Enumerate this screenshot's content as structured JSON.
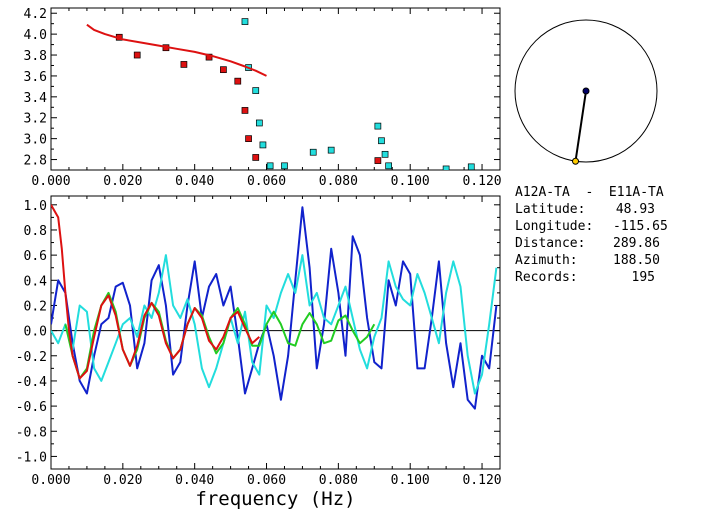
{
  "station_pair": "A12A-TA  -  E11A-TA",
  "info": [
    {
      "label": "Latitude:",
      "value": "48.93"
    },
    {
      "label": "Longitude:",
      "value": "-115.65"
    },
    {
      "label": "Distance:",
      "value": "289.86"
    },
    {
      "label": "Azimuth:",
      "value": "188.50"
    },
    {
      "label": "Records:",
      "value": "195"
    }
  ],
  "colors": {
    "red": "#dd1111",
    "cyan": "#22dddd",
    "blue": "#1122cc",
    "green": "#22cc22",
    "black": "#000000",
    "yellow": "#ffcc00",
    "navy": "#000066"
  },
  "compass": {
    "azimuth_deg": 188.5
  },
  "chart_data": [
    {
      "type": "scatter",
      "xlim": [
        0.0,
        0.125
      ],
      "ylim": [
        2.7,
        4.25
      ],
      "xticks": [
        "0.000",
        "0.020",
        "0.040",
        "0.060",
        "0.080",
        "0.100",
        "0.120"
      ],
      "xtick_values": [
        0.0,
        0.02,
        0.04,
        0.06,
        0.08,
        0.1,
        0.12
      ],
      "yticks": [
        "2.8",
        "3.0",
        "3.2",
        "3.4",
        "3.6",
        "3.8",
        "4.0",
        "4.2"
      ],
      "ytick_values": [
        2.8,
        3.0,
        3.2,
        3.4,
        3.6,
        3.8,
        4.0,
        4.2
      ],
      "series": [
        {
          "color": "#dd1111",
          "kind": "points",
          "x": [
            0.019,
            0.024,
            0.032,
            0.037,
            0.044,
            0.048,
            0.052,
            0.054,
            0.055,
            0.057,
            0.091
          ],
          "y": [
            3.97,
            3.8,
            3.87,
            3.71,
            3.78,
            3.66,
            3.55,
            3.27,
            3.0,
            2.82,
            2.79
          ]
        },
        {
          "color": "#22dddd",
          "kind": "points",
          "x": [
            0.054,
            0.055,
            0.057,
            0.058,
            0.059,
            0.061,
            0.065,
            0.073,
            0.078,
            0.091,
            0.092,
            0.093,
            0.094,
            0.11,
            0.117
          ],
          "y": [
            4.12,
            3.68,
            3.46,
            3.15,
            2.94,
            2.74,
            2.74,
            2.87,
            2.89,
            3.12,
            2.98,
            2.85,
            2.74,
            2.71,
            2.73
          ]
        },
        {
          "color": "#dd1111",
          "kind": "line",
          "x": [
            0.01,
            0.012,
            0.015,
            0.02,
            0.025,
            0.03,
            0.035,
            0.04,
            0.045,
            0.05,
            0.054,
            0.057,
            0.06
          ],
          "y": [
            4.09,
            4.04,
            4.0,
            3.95,
            3.92,
            3.89,
            3.86,
            3.83,
            3.79,
            3.74,
            3.69,
            3.65,
            3.6
          ]
        }
      ]
    },
    {
      "type": "line",
      "xlabel": "frequency (Hz)",
      "xlim": [
        0.0,
        0.125
      ],
      "ylim": [
        -1.1,
        1.07
      ],
      "xticks": [
        "0.000",
        "0.020",
        "0.040",
        "0.060",
        "0.080",
        "0.100",
        "0.120"
      ],
      "xtick_values": [
        0.0,
        0.02,
        0.04,
        0.06,
        0.08,
        0.1,
        0.12
      ],
      "yticks": [
        "1.0",
        "0.8",
        "0.6",
        "0.4",
        "0.2",
        "0.0",
        "-0.2",
        "-0.4",
        "-0.6",
        "-0.8",
        "-1.0"
      ],
      "ytick_values": [
        1.0,
        0.8,
        0.6,
        0.4,
        0.2,
        0.0,
        -0.2,
        -0.4,
        -0.6,
        -0.8,
        -1.0
      ],
      "series": [
        {
          "color": "#1122cc",
          "x": [
            0.0,
            0.002,
            0.004,
            0.006,
            0.008,
            0.01,
            0.012,
            0.014,
            0.016,
            0.018,
            0.02,
            0.022,
            0.024,
            0.026,
            0.028,
            0.03,
            0.032,
            0.034,
            0.036,
            0.038,
            0.04,
            0.042,
            0.044,
            0.046,
            0.048,
            0.05,
            0.052,
            0.054,
            0.056,
            0.058,
            0.06,
            0.062,
            0.064,
            0.066,
            0.068,
            0.07,
            0.072,
            0.074,
            0.076,
            0.078,
            0.08,
            0.082,
            0.084,
            0.086,
            0.088,
            0.09,
            0.092,
            0.094,
            0.096,
            0.098,
            0.1,
            0.102,
            0.104,
            0.106,
            0.108,
            0.11,
            0.112,
            0.114,
            0.116,
            0.118,
            0.12,
            0.122,
            0.124
          ],
          "y": [
            0.05,
            0.4,
            0.3,
            -0.1,
            -0.4,
            -0.5,
            -0.2,
            0.05,
            0.1,
            0.35,
            0.38,
            0.2,
            -0.3,
            -0.1,
            0.4,
            0.52,
            0.2,
            -0.35,
            -0.25,
            0.2,
            0.55,
            0.1,
            0.35,
            0.45,
            0.2,
            0.35,
            -0.05,
            -0.5,
            -0.3,
            -0.1,
            0.05,
            -0.2,
            -0.55,
            -0.2,
            0.4,
            0.98,
            0.5,
            -0.3,
            0.05,
            0.65,
            0.3,
            -0.2,
            0.75,
            0.6,
            0.1,
            -0.25,
            -0.3,
            0.4,
            0.2,
            0.55,
            0.45,
            -0.3,
            -0.3,
            0.1,
            0.55,
            -0.1,
            -0.45,
            -0.1,
            -0.55,
            -0.62,
            -0.2,
            -0.3,
            0.2
          ]
        },
        {
          "color": "#22dddd",
          "x": [
            0.0,
            0.002,
            0.004,
            0.006,
            0.008,
            0.01,
            0.012,
            0.014,
            0.016,
            0.018,
            0.02,
            0.022,
            0.024,
            0.026,
            0.028,
            0.03,
            0.032,
            0.034,
            0.036,
            0.038,
            0.04,
            0.042,
            0.044,
            0.046,
            0.048,
            0.05,
            0.052,
            0.054,
            0.056,
            0.058,
            0.06,
            0.062,
            0.064,
            0.066,
            0.068,
            0.07,
            0.072,
            0.074,
            0.076,
            0.078,
            0.08,
            0.082,
            0.084,
            0.086,
            0.088,
            0.09,
            0.092,
            0.094,
            0.096,
            0.098,
            0.1,
            0.102,
            0.104,
            0.106,
            0.108,
            0.11,
            0.112,
            0.114,
            0.116,
            0.118,
            0.12,
            0.122,
            0.124
          ],
          "y": [
            0.0,
            -0.1,
            0.05,
            -0.15,
            0.2,
            0.15,
            -0.3,
            -0.4,
            -0.25,
            -0.1,
            0.05,
            0.1,
            -0.05,
            0.2,
            0.1,
            0.3,
            0.6,
            0.2,
            0.1,
            0.25,
            0.05,
            -0.3,
            -0.45,
            -0.3,
            -0.1,
            0.1,
            -0.1,
            0.15,
            -0.25,
            -0.35,
            0.2,
            0.1,
            0.3,
            0.45,
            0.3,
            0.6,
            0.2,
            0.3,
            0.1,
            0.05,
            0.2,
            0.35,
            0.1,
            -0.15,
            -0.3,
            -0.05,
            0.1,
            0.55,
            0.35,
            0.25,
            0.2,
            0.45,
            0.3,
            0.1,
            -0.1,
            0.3,
            0.55,
            0.35,
            -0.2,
            -0.5,
            -0.35,
            0.05,
            0.5
          ]
        },
        {
          "color": "#22cc22",
          "x": [
            0.004,
            0.006,
            0.008,
            0.01,
            0.012,
            0.014,
            0.016,
            0.018,
            0.02,
            0.022,
            0.024,
            0.026,
            0.028,
            0.03,
            0.032,
            0.034,
            0.036,
            0.038,
            0.04,
            0.042,
            0.044,
            0.046,
            0.048,
            0.05,
            0.052,
            0.054,
            0.056,
            0.058,
            0.06,
            0.062,
            0.064,
            0.066,
            0.068,
            0.07,
            0.072,
            0.074,
            0.076,
            0.078,
            0.08,
            0.082,
            0.084,
            0.086,
            0.088,
            0.09
          ],
          "y": [
            0.05,
            -0.2,
            -0.38,
            -0.3,
            0.0,
            0.2,
            0.3,
            0.15,
            -0.15,
            -0.28,
            -0.15,
            0.1,
            0.22,
            0.15,
            -0.08,
            -0.22,
            -0.15,
            0.05,
            0.18,
            0.12,
            -0.05,
            -0.18,
            -0.1,
            0.1,
            0.18,
            0.05,
            -0.12,
            -0.12,
            0.05,
            0.15,
            0.05,
            -0.1,
            -0.12,
            0.05,
            0.14,
            0.05,
            -0.1,
            -0.08,
            0.08,
            0.12,
            0.0,
            -0.1,
            -0.05,
            0.05
          ]
        },
        {
          "color": "#dd1111",
          "x": [
            0.0,
            0.002,
            0.003,
            0.004,
            0.005,
            0.006,
            0.008,
            0.01,
            0.012,
            0.014,
            0.016,
            0.018,
            0.02,
            0.022,
            0.024,
            0.026,
            0.028,
            0.03,
            0.032,
            0.034,
            0.036,
            0.038,
            0.04,
            0.042,
            0.044,
            0.046,
            0.048,
            0.05,
            0.052,
            0.054,
            0.056,
            0.058
          ],
          "y": [
            1.0,
            0.9,
            0.65,
            0.3,
            0.0,
            -0.2,
            -0.38,
            -0.32,
            -0.05,
            0.2,
            0.28,
            0.12,
            -0.15,
            -0.28,
            -0.12,
            0.12,
            0.22,
            0.12,
            -0.1,
            -0.22,
            -0.15,
            0.05,
            0.18,
            0.1,
            -0.08,
            -0.15,
            -0.05,
            0.1,
            0.15,
            0.02,
            -0.1,
            -0.05
          ]
        }
      ]
    }
  ]
}
